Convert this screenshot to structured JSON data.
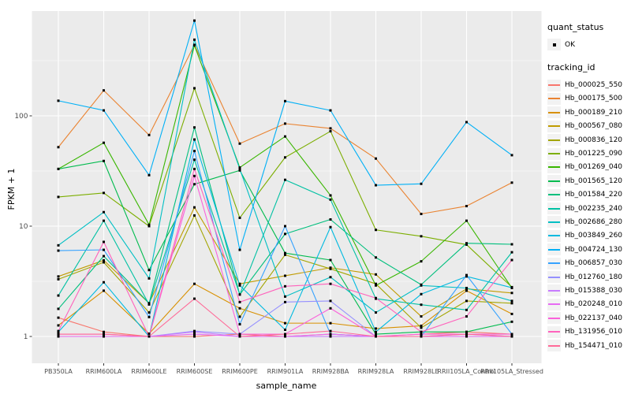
{
  "figure": {
    "ylabel": "FPKM + 1",
    "xlabel": "sample_name",
    "legend": {
      "quant_status_title": "quant_status",
      "quant_status_ok_label": "OK",
      "tracking_id_title": "tracking_id"
    },
    "colors": {
      "panel_background": "#EBEBEB",
      "gridline": "#FFFFFF",
      "tick_label": "#4D4D4D",
      "tick_mark": "#333333",
      "point": "#000000",
      "legend_key_background": "#F2F2F2"
    }
  },
  "chart_data": {
    "type": "line",
    "y_scale": "log10",
    "ylabel": "FPKM + 1",
    "xlabel": "sample_name",
    "y_ticks": [
      1,
      10,
      100
    ],
    "y_minor_ticks": [
      3.162,
      31.62,
      316.2
    ],
    "ylim": [
      0.57,
      890
    ],
    "grid": true,
    "legend_position": "right",
    "point_shape": "filled-square",
    "categories": [
      "PB350LA",
      "RRIM600LA",
      "RRIM600LE",
      "RRIM600SE",
      "RRIM600PE",
      "RRIM901LA",
      "RRIM928BA",
      "RRIM928LA",
      "RRIM928LE",
      "RRII105LA_Control",
      "RRII105LA_Stressed"
    ],
    "quant_status": [
      "OK"
    ],
    "series": [
      {
        "name": "Hb_000025_550",
        "color": "#F8766D",
        "values": [
          1.48,
          1.1,
          1.0,
          1.0,
          1.05,
          1.0,
          1.05,
          1.0,
          1.05,
          1.1,
          1.05
        ]
      },
      {
        "name": "Hb_000175_500",
        "color": "#EA8331",
        "values": [
          52,
          170,
          67,
          440,
          56,
          85,
          77,
          41,
          12.9,
          15.2,
          24.8
        ]
      },
      {
        "name": "Hb_000189_210",
        "color": "#D89000",
        "values": [
          1.26,
          2.6,
          1.06,
          3.0,
          1.8,
          1.32,
          1.32,
          1.18,
          1.25,
          2.6,
          1.6
        ]
      },
      {
        "name": "Hb_000567_080",
        "color": "#C09B00",
        "values": [
          3.5,
          4.9,
          2.0,
          14.8,
          3.0,
          3.55,
          4.2,
          3.65,
          1.52,
          2.7,
          2.48
        ]
      },
      {
        "name": "Hb_000836_120",
        "color": "#A3A500",
        "values": [
          3.3,
          4.7,
          1.65,
          12.5,
          1.51,
          5.5,
          4.1,
          3.0,
          1.2,
          2.1,
          2.0
        ]
      },
      {
        "name": "Hb_001225_090",
        "color": "#7CAE00",
        "values": [
          18.4,
          20,
          10.0,
          178,
          11.9,
          42,
          72.5,
          9.25,
          8.1,
          6.8,
          2.8
        ]
      },
      {
        "name": "Hb_001269_040",
        "color": "#39B600",
        "values": [
          33,
          57,
          10.3,
          435,
          34,
          65,
          19,
          2.9,
          4.8,
          11.2,
          2.75
        ]
      },
      {
        "name": "Hb_001565_120",
        "color": "#00BB4E",
        "values": [
          33,
          39,
          4.0,
          24,
          32,
          5.7,
          4.93,
          1.05,
          1.1,
          1.1,
          1.36
        ]
      },
      {
        "name": "Hb_001584_220",
        "color": "#00BF7D",
        "values": [
          1.78,
          5.35,
          2.0,
          78.5,
          2.4,
          8.5,
          11.5,
          5.2,
          2.95,
          7.0,
          6.85
        ]
      },
      {
        "name": "Hb_002235_240",
        "color": "#00C1A3",
        "values": [
          2.35,
          11.2,
          1.95,
          40,
          2.4,
          26.3,
          17.4,
          2.2,
          1.94,
          1.74,
          5.8
        ]
      },
      {
        "name": "Hb_002686_280",
        "color": "#00BFC4",
        "values": [
          6.7,
          13.4,
          3.36,
          490,
          33,
          2.3,
          3.45,
          1.65,
          2.9,
          2.75,
          2.1
        ]
      },
      {
        "name": "Hb_003849_260",
        "color": "#00BAE0",
        "values": [
          1.1,
          3.1,
          1.0,
          61,
          2.9,
          1.15,
          9.8,
          1.1,
          2.42,
          3.5,
          2.77
        ]
      },
      {
        "name": "Hb_004724_130",
        "color": "#00B0F6",
        "values": [
          137,
          112,
          29,
          730,
          6.1,
          136,
          112,
          23.5,
          24.2,
          87.7,
          44
        ]
      },
      {
        "name": "Hb_006857_030",
        "color": "#35A2FF",
        "values": [
          6.0,
          6.1,
          1.5,
          48,
          1.29,
          10.0,
          1.05,
          1.0,
          1.0,
          3.6,
          1.05
        ]
      },
      {
        "name": "Hb_012760_180",
        "color": "#9590FF",
        "values": [
          1.0,
          1.0,
          1.0,
          1.12,
          1.05,
          2.05,
          2.1,
          1.0,
          1.0,
          1.05,
          1.0
        ]
      },
      {
        "name": "Hb_015388_030",
        "color": "#C77CFF",
        "values": [
          1.0,
          1.0,
          1.0,
          1.1,
          1.0,
          1.0,
          1.0,
          1.0,
          1.0,
          1.0,
          1.0
        ]
      },
      {
        "name": "Hb_020248_010",
        "color": "#E76BF3",
        "values": [
          1.0,
          1.0,
          1.0,
          1.05,
          1.0,
          1.0,
          1.05,
          1.0,
          1.0,
          1.0,
          1.0
        ]
      },
      {
        "name": "Hb_022137_040",
        "color": "#FA62DB",
        "values": [
          1.05,
          1.05,
          1.0,
          28.5,
          1.05,
          1.05,
          1.8,
          1.0,
          1.05,
          1.05,
          1.05
        ]
      },
      {
        "name": "Hb_131956_010",
        "color": "#FF62BC",
        "values": [
          1.12,
          7.2,
          1.0,
          33,
          2.05,
          2.85,
          3.0,
          2.23,
          1.1,
          1.52,
          4.93
        ]
      },
      {
        "name": "Hb_154471_010",
        "color": "#FF6A98",
        "values": [
          1.05,
          1.05,
          1.0,
          2.2,
          1.0,
          1.05,
          1.12,
          1.0,
          1.0,
          1.05,
          1.0
        ]
      }
    ]
  }
}
